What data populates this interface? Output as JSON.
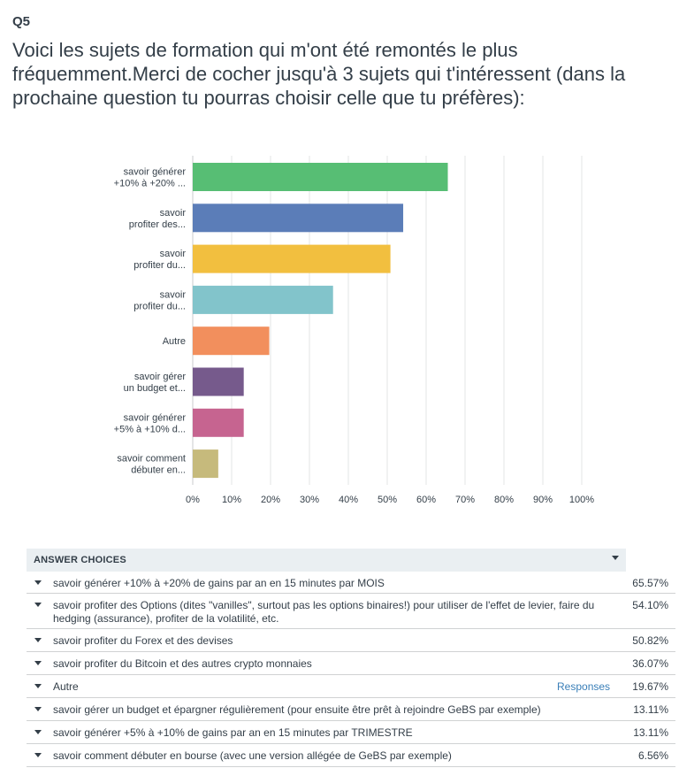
{
  "question": {
    "number": "Q5",
    "title": "Voici les sujets de formation qui m'ont été remontés le plus fréquemment.Merci de cocher jusqu'à 3 sujets qui t'intéressent (dans la prochaine question tu pourras choisir celle que tu préfères):"
  },
  "chart_data": {
    "type": "bar",
    "orientation": "horizontal",
    "categories": [
      [
        "savoir générer",
        "+10% à +20% ..."
      ],
      [
        "savoir",
        "profiter des..."
      ],
      [
        "savoir",
        "profiter du..."
      ],
      [
        "savoir",
        "profiter du..."
      ],
      [
        "Autre"
      ],
      [
        "savoir gérer",
        "un budget et..."
      ],
      [
        "savoir générer",
        "+5% à +10% d..."
      ],
      [
        "savoir comment",
        "débuter en..."
      ]
    ],
    "values": [
      65.57,
      54.1,
      50.82,
      36.07,
      19.67,
      13.11,
      13.11,
      6.56
    ],
    "colors": [
      "#57be74",
      "#5b7db8",
      "#f2bf3f",
      "#82c4cb",
      "#f28f5d",
      "#765a8c",
      "#c66490",
      "#c6ba7c"
    ],
    "xlim": [
      0,
      100
    ],
    "ticks": [
      "0%",
      "10%",
      "20%",
      "30%",
      "40%",
      "50%",
      "60%",
      "70%",
      "80%",
      "90%",
      "100%"
    ],
    "grid": true
  },
  "table": {
    "header": "ANSWER CHOICES",
    "rows": [
      {
        "text": "savoir générer +10% à +20% de gains par an en 15 minutes par MOIS",
        "pct": "65.57%"
      },
      {
        "text": "savoir profiter des Options (dites \"vanilles\", surtout pas les options binaires!) pour utiliser de l'effet de levier, faire du hedging (assurance), profiter de la volatilité, etc.",
        "pct": "54.10%"
      },
      {
        "text": "savoir profiter du Forex et des devises",
        "pct": "50.82%"
      },
      {
        "text": "savoir profiter du Bitcoin et des autres crypto monnaies",
        "pct": "36.07%"
      },
      {
        "text": "Autre",
        "pct": "19.67%",
        "link": "Responses"
      },
      {
        "text": "savoir gérer un budget et épargner régulièrement (pour ensuite être prêt à rejoindre GeBS par exemple)",
        "pct": "13.11%"
      },
      {
        "text": "savoir générer +5% à +10% de gains par an en 15 minutes par TRIMESTRE",
        "pct": "13.11%"
      },
      {
        "text": "savoir comment débuter en bourse (avec une version allégée de GeBS par exemple)",
        "pct": "6.56%"
      }
    ]
  }
}
